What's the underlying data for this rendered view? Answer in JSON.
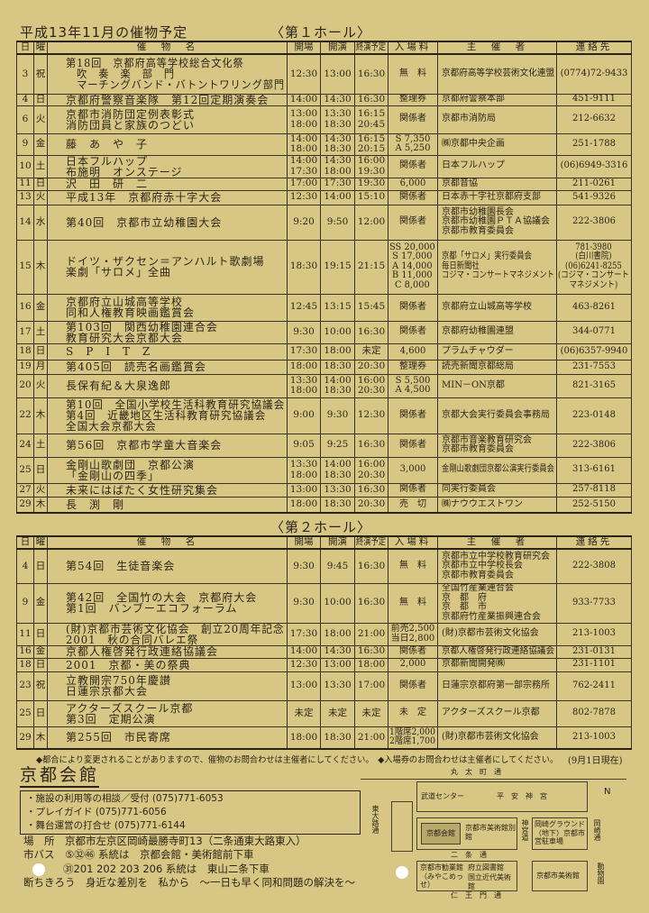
{
  "header": {
    "title": "平成13年11月の催物予定",
    "hall1": "〈第１ホール〉",
    "hall2": "〈第２ホール〉"
  },
  "columns": [
    "日",
    "曜",
    "催　物　名",
    "開場",
    "開演",
    "終演予定",
    "入場料",
    "主　催　者",
    "連絡先"
  ],
  "hall1": [
    {
      "day": "3",
      "dow": "祝",
      "name": "第18回　京都府高等学校総合文化祭\n　吹　奏　楽　部　門\n　マーチングバンド・バトントワリング部門",
      "open": "12:30",
      "start": "13:00",
      "end": "16:30",
      "fee": "無　料",
      "org": "京都府高等学校芸術文化連盟",
      "tel": "(0774)72-9433"
    },
    {
      "day": "4",
      "dow": "日",
      "name": "京都府警察音楽隊　第12回定期演奏会",
      "open": "14:00",
      "start": "14:30",
      "end": "16:30",
      "fee": "整理券",
      "org": "京都府警察本部",
      "tel": "451-9111"
    },
    {
      "day": "6",
      "dow": "火",
      "name": "京都市消防団定例表彰式\n消防団員と家族のつどい",
      "open": "13:00\n18:00",
      "start": "13:30\n18:30",
      "end": "16:15\n20:45",
      "fee": "関係者",
      "org": "京都市消防局",
      "tel": "212-6632"
    },
    {
      "day": "9",
      "dow": "金",
      "name": "藤　あ　や　子",
      "open": "14:00\n18:00",
      "start": "14:30\n18:30",
      "end": "16:15\n20:15",
      "fee": "S 7,350\nA 5,250",
      "org": "㈱京都中央企画",
      "tel": "251-1788"
    },
    {
      "day": "10",
      "dow": "土",
      "name": "日本フルハップ\n布施明　オンステージ",
      "open": "14:00\n17:30",
      "start": "14:30\n18:00",
      "end": "16:00\n19:30",
      "fee": "関係者",
      "org": "日本フルハップ",
      "tel": "(06)6949-3316"
    },
    {
      "day": "11",
      "dow": "日",
      "name": "沢　田　研　二",
      "open": "17:00",
      "start": "17:30",
      "end": "19:30",
      "fee": "6,000",
      "org": "京都音協",
      "tel": "211-0261"
    },
    {
      "day": "13",
      "dow": "火",
      "name": "平成13年　京都府赤十字大会",
      "open": "12:30",
      "start": "14:00",
      "end": "15:10",
      "fee": "関係者",
      "org": "日本赤十字社京都府支部",
      "tel": "541-9326"
    },
    {
      "day": "14",
      "dow": "水",
      "name": "第40回　京都市立幼稚園大会",
      "open": "9:20",
      "start": "9:50",
      "end": "12:00",
      "fee": "関係者",
      "org": "京都市幼稚園長会\n京都市幼稚園ＰＴＡ協議会\n京都市教育委員会",
      "tel": "222-3806"
    },
    {
      "day": "15",
      "dow": "木",
      "name": "ドイツ・ザクセン＝アンハルト歌劇場\n楽劇「サロメ」全曲",
      "open": "18:30",
      "start": "19:15",
      "end": "21:15",
      "fee": "SS 20,000\nS 17,000\nA 14,000\nB 11,000\nC 8,000",
      "org": "京都「サロメ」実行委員会\n毎日新聞社\nコジマ・コンサートマネジメント",
      "tel": "781-3980\n(白川書院)\n(06)6241-8255\n(コジマ・コンサート\nマネジメント)"
    },
    {
      "day": "16",
      "dow": "金",
      "name": "京都府立山城高等学校\n同和人権教育映画鑑賞会",
      "open": "12:45",
      "start": "13:15",
      "end": "15:45",
      "fee": "関係者",
      "org": "京都府立山城高等学校",
      "tel": "463-8261"
    },
    {
      "day": "17",
      "dow": "土",
      "name": "第103回　関西幼稚園連合会\n教育研究大会京都大会",
      "open": "9:30",
      "start": "10:00",
      "end": "16:30",
      "fee": "関係者",
      "org": "京都府幼稚園連盟",
      "tel": "344-0771"
    },
    {
      "day": "18",
      "dow": "日",
      "name": "S　P　I　T　Z",
      "open": "17:30",
      "start": "18:00",
      "end": "未定",
      "fee": "4,600",
      "org": "プラムチャウダー",
      "tel": "(06)6357-9940"
    },
    {
      "day": "19",
      "dow": "月",
      "name": "第405回　読売名画鑑賞会",
      "open": "18:00",
      "start": "18:30",
      "end": "20:30",
      "fee": "整理券",
      "org": "読売新聞京都総局",
      "tel": "231-7553"
    },
    {
      "day": "20",
      "dow": "火",
      "name": "長保有紀＆大泉逸郎",
      "open": "13:30\n18:00",
      "start": "14:00\n18:30",
      "end": "16:00\n20:30",
      "fee": "S 5,500\nA 4,500",
      "org": "MIN－ON京都",
      "tel": "821-3165"
    },
    {
      "day": "22",
      "dow": "木",
      "name": "第10回　全国小学校生活科教育研究協議会\n第4回　近畿地区生活科教育研究協議会\n全国大会京都大会",
      "open": "9:00",
      "start": "9:30",
      "end": "12:30",
      "fee": "関係者",
      "org": "京都大会実行委員会事務局",
      "tel": "223-0148"
    },
    {
      "day": "24",
      "dow": "土",
      "name": "第56回　京都市学童大音楽会",
      "open": "9:05",
      "start": "9:25",
      "end": "16:30",
      "fee": "関係者",
      "org": "京都市音楽教育研究会\n京都市教育委員会",
      "tel": "222-3806"
    },
    {
      "day": "25",
      "dow": "日",
      "name": "金剛山歌劇団　京都公演\n「金剛山の四季」",
      "open": "13:30\n18:00",
      "start": "14:00\n18:30",
      "end": "16:00\n20:30",
      "fee": "3,000",
      "org": "金剛山歌劇団京都公演実行委員会",
      "tel": "313-6161"
    },
    {
      "day": "27",
      "dow": "火",
      "name": "未来にはばたく女性研究集会",
      "open": "13:00",
      "start": "13:30",
      "end": "16:30",
      "fee": "関係者",
      "org": "同実行委員会",
      "tel": "257-8118"
    },
    {
      "day": "29",
      "dow": "木",
      "name": "長　渕　剛",
      "open": "18:00",
      "start": "18:30",
      "end": "20:30",
      "fee": "売　切",
      "org": "㈱ナウウエストワン",
      "tel": "252-5150"
    }
  ],
  "hall2": [
    {
      "day": "4",
      "dow": "日",
      "name": "第54回　生徒音楽会",
      "open": "9:30",
      "start": "9:45",
      "end": "16:30",
      "fee": "無　料",
      "org": "京都市立中学校教育研究会\n京都市立中学校長会\n京都市教育委員会",
      "tel": "222-3808"
    },
    {
      "day": "9",
      "dow": "金",
      "name": "第42回　全国竹の大会　京都府大会\n第1回　バンブーエコフォーラム",
      "open": "9:30",
      "start": "10:00",
      "end": "16:30",
      "fee": "無　料",
      "org": "全国竹産業連合会\n京　都　府\n京　都　市\n京都府竹産業振興連合会",
      "tel": "933-7733"
    },
    {
      "day": "11",
      "dow": "日",
      "name": "(財)京都市芸術文化協会　創立20周年記念\n2001　秋の合同バレエ祭",
      "open": "17:30",
      "start": "18:00",
      "end": "21:00",
      "fee": "前売2,500\n当日2,800",
      "org": "(財)京都市芸術文化協会",
      "tel": "213-1003"
    },
    {
      "day": "16",
      "dow": "金",
      "name": "京都人権啓発行政連絡協議会",
      "open": "14:00",
      "start": "14:30",
      "end": "16:30",
      "fee": "関係者",
      "org": "京都人権啓発行政連絡協議会",
      "tel": "231-0131"
    },
    {
      "day": "18",
      "dow": "日",
      "name": "2001　京都・美の祭典",
      "open": "12:30",
      "start": "13:00",
      "end": "18:00",
      "fee": "2,000",
      "org": "京都新聞開発㈱",
      "tel": "231-1101"
    },
    {
      "day": "23",
      "dow": "祝",
      "name": "立教開宗750年慶讃\n日蓮宗京都大会",
      "open": "13:00",
      "start": "13:30",
      "end": "17:00",
      "fee": "関係者",
      "org": "日蓮宗京都府第一部宗務所",
      "tel": "762-2411"
    },
    {
      "day": "25",
      "dow": "日",
      "name": "アクターズスクール京都\n第3回　定期公演",
      "open": "未定",
      "start": "未定",
      "end": "未定",
      "fee": "未　定",
      "org": "アクターズスクール京都",
      "tel": "802-7878"
    },
    {
      "day": "29",
      "dow": "木",
      "name": "第255回　市民寄席",
      "open": "18:00",
      "start": "18:30",
      "end": "21:00",
      "fee": "1階席2,000\n2階席1,700",
      "org": "(財)京都市芸術文化協会",
      "tel": "213-1003"
    }
  ],
  "notes": {
    "note1": "◆都合により変更されることがありますので、催物のお問合わせは主催者にしてください。　◆入場券のお問合わせは主催者にしてください。",
    "as_of": "(9月1日現在)"
  },
  "footer": {
    "venue": "京都会館",
    "consult": "・施設の利用等の相談／受付 (075)771-6053",
    "playguide": "・プレイガイド (075)771-6056",
    "stage": "・舞台運営の打合せ (075)771-6144",
    "place": "場　所　京都市左京区岡崎最勝寺町13（二条通東大路東入）",
    "bus1": "市バス　⑤㉜㊻ 系統は　京都会館・美術館前下車",
    "bus2": "㉛201 202 203 206 系統は　東山二条下車",
    "slogan": "断ちきろう　身近な差別を　私から　～一日も早く同和問題の解決を～"
  },
  "map": {
    "marutamachi": "丸　太　町　通",
    "heian": "平　安　神　宮",
    "budo": "武道センター",
    "kaikan": "京都会館",
    "bekkan": "京都市美術館別館",
    "jingu": "神宮道",
    "ground": "岡崎グラウンド（地下）京都市営駐車場",
    "nijo": "二　条　通",
    "kangyokan": "京都市勧業館（みやこめっせ）",
    "toshokan": "府立図書館",
    "kindai": "国立近代美術館",
    "bijutsukan": "京都市美術館",
    "niomon": "仁　王　門　通",
    "higashioji": "東大路通",
    "zoo": "動物園",
    "okazaki": "岡崎通",
    "north": "N"
  }
}
